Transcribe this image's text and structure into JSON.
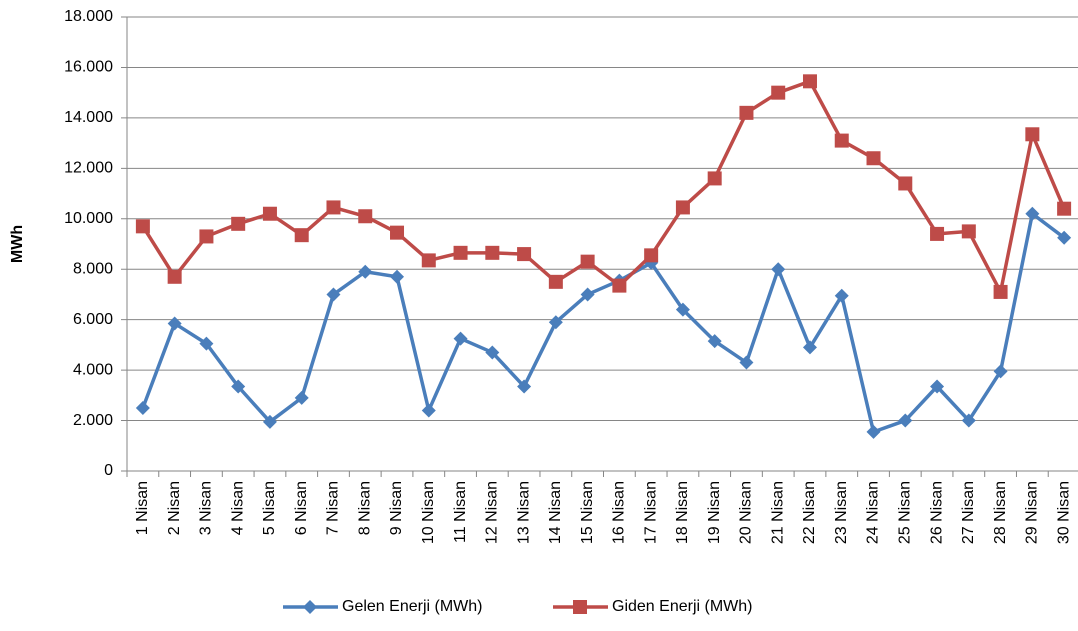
{
  "chart_data": {
    "type": "line",
    "ylabel": "MWh",
    "categories": [
      "1 Nisan",
      "2 Nisan",
      "3 Nisan",
      "4 Nisan",
      "5 Nisan",
      "6 Nisan",
      "7 Nisan",
      "8 Nisan",
      "9 Nisan",
      "10 Nisan",
      "11 Nisan",
      "12 Nisan",
      "13 Nisan",
      "14 Nisan",
      "15 Nisan",
      "16 Nisan",
      "17 Nisan",
      "18 Nisan",
      "19 Nisan",
      "20 Nisan",
      "21 Nisan",
      "22 Nisan",
      "23 Nisan",
      "24 Nisan",
      "25 Nisan",
      "26 Nisan",
      "27 Nisan",
      "28 Nisan",
      "29 Nisan",
      "30 Nisan"
    ],
    "series": [
      {
        "name": "Gelen Enerji (MWh)",
        "color": "#4a7ebb",
        "marker": "diamond",
        "values": [
          2500,
          5850,
          5050,
          3350,
          1950,
          2900,
          7000,
          7900,
          7700,
          2400,
          5250,
          4700,
          3350,
          5900,
          7000,
          7550,
          8250,
          6400,
          5150,
          4300,
          8000,
          4900,
          6950,
          1550,
          2000,
          3350,
          2000,
          3950,
          10200,
          9250
        ]
      },
      {
        "name": "Giden Enerji (MWh)",
        "color": "#be4b48",
        "marker": "square",
        "values": [
          9700,
          7700,
          9300,
          9800,
          10200,
          9350,
          10450,
          10100,
          9450,
          8350,
          8650,
          8650,
          8600,
          7500,
          8300,
          7350,
          8550,
          10450,
          11600,
          14200,
          15000,
          15450,
          13100,
          12400,
          11400,
          9400,
          9500,
          7100,
          13350,
          10400
        ]
      }
    ],
    "ylim": [
      0,
      18000
    ],
    "yticks": [
      0,
      {
        "value": 2000,
        "label": "2.000"
      },
      {
        "value": 4000,
        "label": "4.000"
      },
      {
        "value": 6000,
        "label": "6.000"
      },
      {
        "value": 8000,
        "label": "8.000"
      },
      {
        "value": 10000,
        "label": "10.000"
      },
      {
        "value": 12000,
        "label": "12.000"
      },
      {
        "value": 14000,
        "label": "14.000"
      },
      {
        "value": 16000,
        "label": "16.000"
      },
      {
        "value": 18000,
        "label": "18.000"
      }
    ],
    "grid": true,
    "legend": "bottom"
  }
}
